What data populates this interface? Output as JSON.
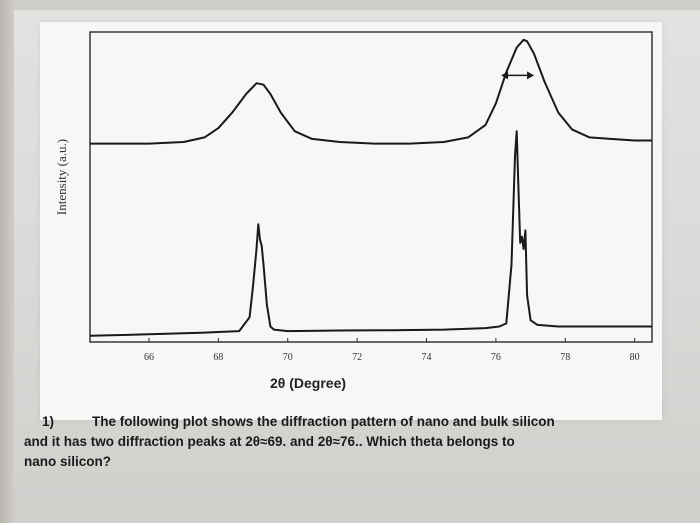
{
  "chart_data": {
    "type": "line",
    "title": "",
    "xlabel": "2θ (Degree)",
    "ylabel": "Intensity (a.u.)",
    "xlim": [
      64.3,
      80.5
    ],
    "x_ticks": [
      66,
      68,
      70,
      72,
      74,
      76,
      78,
      80
    ],
    "grid": false,
    "legend": "none",
    "series": [
      {
        "x": [
          64.3,
          66,
          67,
          67.6,
          68,
          68.4,
          68.8,
          69.1,
          69.3,
          69.5,
          69.8,
          70.2,
          70.7,
          71.5,
          72.5,
          73.5,
          74.5,
          75.2,
          75.7,
          76.0,
          76.3,
          76.6,
          76.8,
          76.9,
          77.1,
          77.4,
          77.8,
          78.2,
          78.7,
          79.3,
          80.0,
          80.5
        ],
        "y": [
          0.64,
          0.64,
          0.645,
          0.66,
          0.69,
          0.74,
          0.8,
          0.835,
          0.83,
          0.8,
          0.74,
          0.68,
          0.655,
          0.645,
          0.64,
          0.64,
          0.645,
          0.66,
          0.7,
          0.77,
          0.87,
          0.95,
          0.975,
          0.97,
          0.93,
          0.84,
          0.74,
          0.685,
          0.66,
          0.655,
          0.65,
          0.65
        ]
      },
      {
        "x": [
          64.3,
          66,
          67.5,
          68.6,
          68.9,
          69.0,
          69.1,
          69.15,
          69.2,
          69.25,
          69.3,
          69.4,
          69.5,
          69.6,
          70.0,
          71.5,
          73.0,
          74.5,
          75.7,
          76.1,
          76.3,
          76.45,
          76.55,
          76.6,
          76.65,
          76.7,
          76.75,
          76.8,
          76.85,
          76.9,
          77.0,
          77.2,
          77.8,
          79.0,
          80.5
        ],
        "y": [
          0.02,
          0.025,
          0.03,
          0.035,
          0.08,
          0.18,
          0.3,
          0.38,
          0.33,
          0.31,
          0.25,
          0.12,
          0.05,
          0.04,
          0.035,
          0.037,
          0.038,
          0.04,
          0.045,
          0.05,
          0.06,
          0.25,
          0.6,
          0.68,
          0.5,
          0.32,
          0.34,
          0.3,
          0.36,
          0.15,
          0.07,
          0.055,
          0.05,
          0.05,
          0.05
        ]
      }
    ],
    "annotations": [
      "double-headed arrow marking the peak width near 2θ≈76.6"
    ]
  },
  "question": {
    "number": "1)",
    "lines": [
      "The following plot shows the diffraction pattern of nano and bulk silicon",
      "and it has two diffraction peaks at 2θ≈69. and 2θ≈76.. Which theta belongs to",
      "nano silicon?"
    ]
  },
  "colors": {
    "line": "#1a1a1a",
    "card": "#f7f7f6",
    "paper": "#dcdcda"
  }
}
